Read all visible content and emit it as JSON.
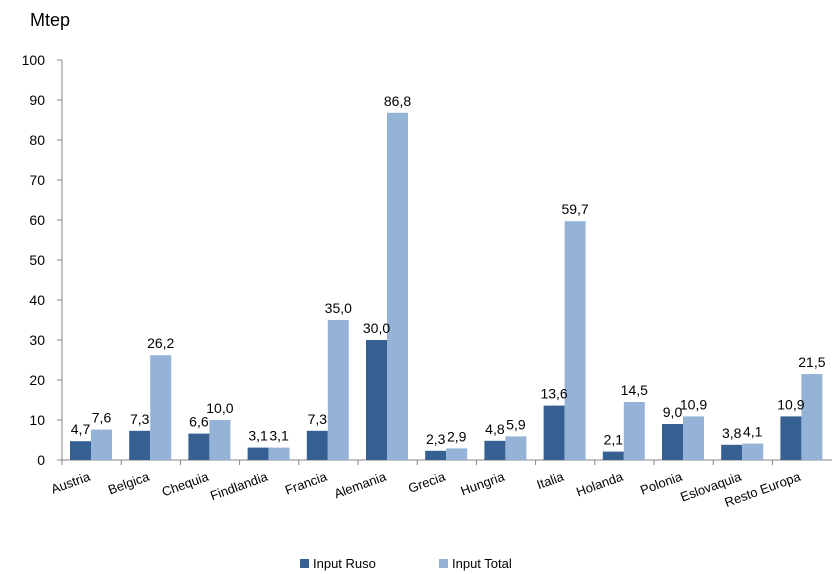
{
  "chart_data": {
    "type": "bar",
    "title": "Mtep",
    "categories": [
      "Austria",
      "Belgica",
      "Chequia",
      "Findlandia",
      "Francia",
      "Alemania",
      "Grecia",
      "Hungria",
      "Italia",
      "Holanda",
      "Polonia",
      "Eslovaquia",
      "Resto Europa"
    ],
    "series": [
      {
        "name": "Input Ruso",
        "color": "#366092",
        "values": [
          4.7,
          7.3,
          6.6,
          3.1,
          7.3,
          30.0,
          2.3,
          4.8,
          13.6,
          2.1,
          9.0,
          3.8,
          10.9
        ],
        "labels": [
          "4,7",
          "7,3",
          "6,6",
          "3,1",
          "7,3",
          "30,0",
          "2,3",
          "4,8",
          "13,6",
          "2,1",
          "9,0",
          "3,8",
          "10,9"
        ]
      },
      {
        "name": "Input Total",
        "color": "#95B3D7",
        "values": [
          7.6,
          26.2,
          10.0,
          3.1,
          35.0,
          86.8,
          2.9,
          5.9,
          59.7,
          14.5,
          10.9,
          4.1,
          21.5
        ],
        "labels": [
          "7,6",
          "26,2",
          "10,0",
          "3,1",
          "35,0",
          "86,8",
          "2,9",
          "5,9",
          "59,7",
          "14,5",
          "10,9",
          "4,1",
          "21,5"
        ]
      }
    ],
    "ylim": [
      0,
      100
    ],
    "yticks": [
      "0",
      "10",
      "20",
      "30",
      "40",
      "50",
      "60",
      "70",
      "80",
      "90",
      "100"
    ],
    "grid": false,
    "legend_position": "bottom"
  }
}
